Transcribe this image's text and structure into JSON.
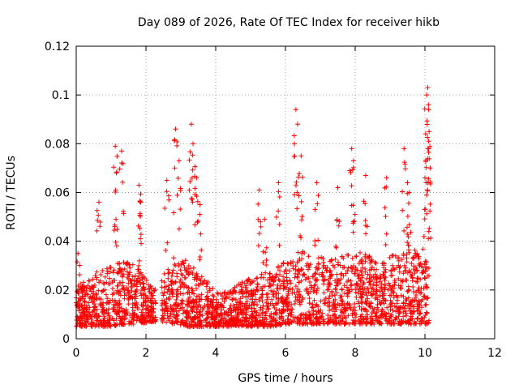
{
  "chart_data": {
    "type": "scatter",
    "title": "Day 089 of 2026, Rate Of TEC Index for receiver hikb",
    "xlabel": "GPS time / hours",
    "ylabel": "ROTI / TECUs",
    "xlim": [
      0,
      12
    ],
    "ylim": [
      0,
      0.12
    ],
    "x_ticks": [
      0,
      2,
      4,
      6,
      8,
      10,
      12
    ],
    "x_tick_labels": [
      "0",
      "2",
      "4",
      "6",
      "8",
      "10",
      "12"
    ],
    "y_ticks": [
      0,
      0.02,
      0.04,
      0.06,
      0.08,
      0.1,
      0.12
    ],
    "y_tick_labels": [
      "0",
      "0.02",
      "0.04",
      "0.06",
      "0.08",
      "0.1",
      "0.12"
    ],
    "grid": true,
    "marker": "+",
    "marker_color": "#ff0000",
    "series": [
      {
        "name": "ROTI",
        "baseline_profile": {
          "x": [
            0.0,
            0.3,
            0.6,
            1.0,
            1.4,
            1.8,
            2.2,
            2.5,
            2.8,
            3.2,
            3.6,
            4.0,
            4.4,
            4.8,
            5.2,
            5.6,
            6.0,
            6.4,
            6.8,
            7.2,
            7.6,
            8.0,
            8.4,
            8.8,
            9.2,
            9.6,
            10.0,
            10.15
          ],
          "low": [
            0.005,
            0.005,
            0.005,
            0.005,
            0.006,
            0.006,
            0.007,
            0.007,
            0.006,
            0.005,
            0.005,
            0.005,
            0.005,
            0.005,
            0.005,
            0.005,
            0.006,
            0.006,
            0.006,
            0.006,
            0.006,
            0.006,
            0.006,
            0.006,
            0.006,
            0.006,
            0.006,
            0.006
          ],
          "high": [
            0.022,
            0.024,
            0.028,
            0.03,
            0.032,
            0.03,
            0.02,
            0.026,
            0.034,
            0.032,
            0.026,
            0.02,
            0.02,
            0.024,
            0.026,
            0.028,
            0.032,
            0.036,
            0.036,
            0.032,
            0.034,
            0.036,
            0.034,
            0.034,
            0.036,
            0.038,
            0.036,
            0.03
          ]
        },
        "gap_hours": [
          2.28,
          2.45
        ],
        "time_end_hours": 10.12,
        "notable_points": [
          [
            0.05,
            0.035
          ],
          [
            0.65,
            0.056
          ],
          [
            1.12,
            0.079
          ],
          [
            1.15,
            0.068
          ],
          [
            1.3,
            0.077
          ],
          [
            1.8,
            0.063
          ],
          [
            1.85,
            0.056
          ],
          [
            2.6,
            0.065
          ],
          [
            2.85,
            0.086
          ],
          [
            2.95,
            0.073
          ],
          [
            3.3,
            0.088
          ],
          [
            3.35,
            0.08
          ],
          [
            3.45,
            0.066
          ],
          [
            3.55,
            0.055
          ],
          [
            5.25,
            0.061
          ],
          [
            5.4,
            0.049
          ],
          [
            5.8,
            0.064
          ],
          [
            6.3,
            0.094
          ],
          [
            6.35,
            0.088
          ],
          [
            6.45,
            0.075
          ],
          [
            6.9,
            0.064
          ],
          [
            7.5,
            0.062
          ],
          [
            7.9,
            0.078
          ],
          [
            7.95,
            0.073
          ],
          [
            8.3,
            0.067
          ],
          [
            8.9,
            0.066
          ],
          [
            9.4,
            0.078
          ],
          [
            9.5,
            0.064
          ],
          [
            9.55,
            0.06
          ],
          [
            10.0,
            0.066
          ],
          [
            10.05,
            0.1
          ],
          [
            10.08,
            0.103
          ],
          [
            10.1,
            0.096
          ],
          [
            10.12,
            0.085
          ],
          [
            10.15,
            0.07
          ]
        ]
      }
    ]
  }
}
